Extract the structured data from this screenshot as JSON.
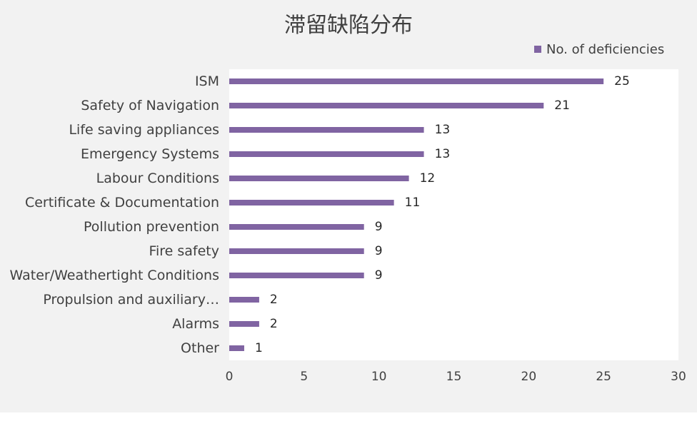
{
  "chart_data": {
    "type": "bar",
    "orientation": "horizontal",
    "title": "滞留缺陷分布",
    "categories": [
      "ISM",
      "Safety of Navigation",
      "Life saving appliances",
      "Emergency Systems",
      "Labour Conditions",
      "Certificate & Documentation",
      "Pollution prevention",
      "Fire safety",
      "Water/Weathertight Conditions",
      "Propulsion and auxiliary…",
      "Alarms",
      "Other"
    ],
    "series": [
      {
        "name": "No. of deficiencies",
        "color": "#8064a2",
        "values": [
          25,
          21,
          13,
          13,
          12,
          11,
          9,
          9,
          9,
          2,
          2,
          1
        ]
      }
    ],
    "xlim": [
      0,
      30
    ],
    "xticks": [
      0,
      5,
      10,
      15,
      20,
      25,
      30
    ],
    "grid": false,
    "data_labels": true,
    "legend_position": "top-right"
  }
}
